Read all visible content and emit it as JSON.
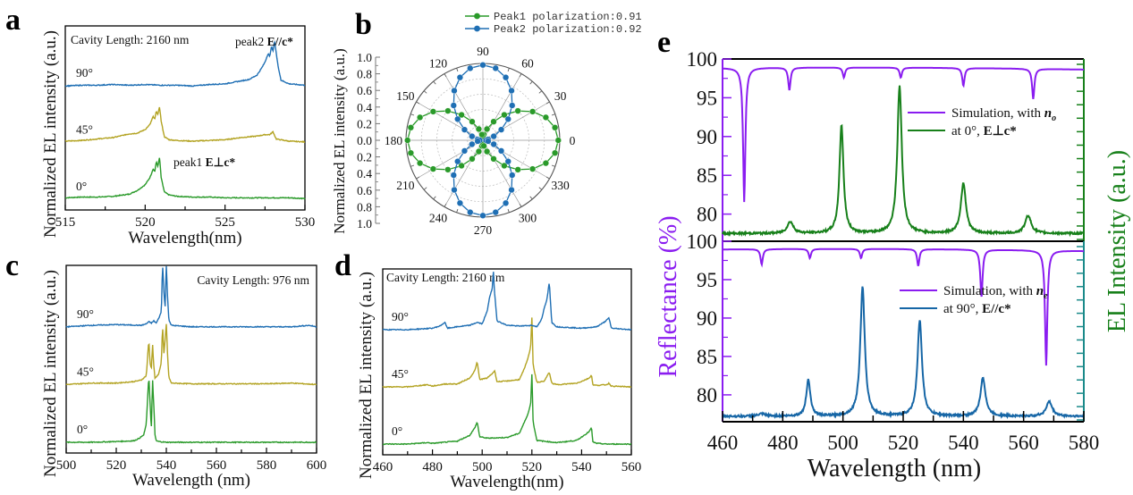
{
  "colors": {
    "green": "#2a9a2a",
    "olive": "#b3a322",
    "blue": "#1f6fb4",
    "purple": "#8a1cf0",
    "dark_green": "#17801a",
    "steel_blue": "#1666a6",
    "teal_axis": "#1a8a8a"
  },
  "chart_data": [
    {
      "id": "a",
      "type": "line",
      "panel_letter": "a",
      "title": "",
      "annotation": "Cavity Length: 2160 nm",
      "xlabel": "Wavelength(nm)",
      "ylabel": "Normalized EL intensity (a.u.)",
      "xlim": [
        515,
        530
      ],
      "xticks": [
        515,
        520,
        525,
        530
      ],
      "yticks_shown": false,
      "peak_labels": [
        {
          "text": "peak2 ",
          "bold": "E//c*",
          "x": 525.5
        },
        {
          "text": "peak1 ",
          "bold": "E⊥c*",
          "x": 521.6
        }
      ],
      "series": [
        {
          "name": "0°",
          "color_key": "green",
          "offset": 0.0,
          "x": [
            515,
            516,
            517,
            518,
            519,
            519.5,
            520,
            520.3,
            520.5,
            520.6,
            520.7,
            520.8,
            520.9,
            521.0,
            521.2,
            521.5,
            522,
            523,
            524,
            525,
            526,
            527,
            528,
            529,
            530
          ],
          "y": [
            0.02,
            0.03,
            0.03,
            0.04,
            0.07,
            0.12,
            0.2,
            0.3,
            0.42,
            0.38,
            0.52,
            0.45,
            0.58,
            0.3,
            0.1,
            0.06,
            0.04,
            0.03,
            0.03,
            0.02,
            0.02,
            0.02,
            0.02,
            0.02,
            0.01
          ]
        },
        {
          "name": "45°",
          "color_key": "olive",
          "offset": 1.0,
          "x": [
            515,
            516,
            517,
            518,
            519,
            519.5,
            520,
            520.3,
            520.5,
            520.6,
            520.7,
            520.8,
            520.9,
            521.0,
            521.2,
            521.5,
            522,
            523,
            524,
            525,
            526,
            527,
            527.5,
            527.8,
            528.0,
            528.2,
            529,
            530
          ],
          "y": [
            0.02,
            0.03,
            0.05,
            0.07,
            0.12,
            0.13,
            0.18,
            0.25,
            0.36,
            0.32,
            0.44,
            0.38,
            0.5,
            0.3,
            0.08,
            0.04,
            0.03,
            0.02,
            0.03,
            0.04,
            0.07,
            0.09,
            0.11,
            0.11,
            0.15,
            0.05,
            0.02,
            0.01
          ]
        },
        {
          "name": "90°",
          "color_key": "blue",
          "offset": 2.0,
          "x": [
            515,
            516,
            517,
            518,
            519,
            520,
            521,
            522,
            523,
            524,
            525,
            525.5,
            526,
            526.5,
            527,
            527.3,
            527.5,
            527.7,
            527.8,
            527.9,
            528.0,
            528.1,
            528.3,
            528.5,
            529,
            530
          ],
          "y": [
            0.0,
            0.01,
            0.01,
            0.02,
            0.01,
            0.02,
            0.01,
            0.01,
            0.0,
            0.02,
            0.03,
            0.05,
            0.07,
            0.09,
            0.15,
            0.25,
            0.33,
            0.45,
            0.4,
            0.55,
            0.48,
            0.62,
            0.3,
            0.08,
            0.03,
            0.01
          ]
        }
      ]
    },
    {
      "id": "b",
      "type": "polar",
      "panel_letter": "b",
      "ylabel": "Normalized EL intensity (a.u.)",
      "radial_ticks": [
        "1.0",
        "0.8",
        "0.6",
        "0.4",
        "0.2",
        "0.0",
        "0.2",
        "0.4",
        "0.6",
        "0.8",
        "1.0"
      ],
      "rlim": [
        0,
        1.0
      ],
      "angle_ticks": [
        0,
        30,
        60,
        90,
        120,
        150,
        180,
        210,
        240,
        270,
        300,
        330
      ],
      "legend": [
        {
          "label": "Peak1 polarization:0.91",
          "color_key": "green"
        },
        {
          "label": "Peak2 polarization:0.92",
          "color_key": "blue"
        }
      ],
      "legend_position": "top-right",
      "series": [
        {
          "name": "Peak1",
          "color_key": "green",
          "degree_of_polarization": 0.91,
          "max_angle_deg": 0,
          "angle_step_deg": 10
        },
        {
          "name": "Peak2",
          "color_key": "blue",
          "degree_of_polarization": 0.92,
          "max_angle_deg": 90,
          "angle_step_deg": 10
        }
      ]
    },
    {
      "id": "c",
      "type": "line",
      "panel_letter": "c",
      "annotation": "Cavity Length: 976 nm",
      "xlabel": "Wavelength (nm)",
      "ylabel": "Normalized EL intensity (a.u.)",
      "xlim": [
        500,
        600
      ],
      "xticks": [
        500,
        520,
        540,
        560,
        580,
        600
      ],
      "series": [
        {
          "name": "0°",
          "color_key": "green",
          "offset": 0.0,
          "x": [
            500,
            510,
            520,
            527,
            529,
            531,
            532,
            533,
            533.5,
            534,
            534.5,
            535,
            535.5,
            536,
            537,
            540,
            550,
            560,
            570,
            580,
            590,
            600
          ],
          "y": [
            0.0,
            0.0,
            0.01,
            0.02,
            0.05,
            0.1,
            0.25,
            0.9,
            0.55,
            0.15,
            0.85,
            0.5,
            0.08,
            0.02,
            0.01,
            0.0,
            0.0,
            0.0,
            0.0,
            0.0,
            0.0,
            0.0
          ]
        },
        {
          "name": "45°",
          "color_key": "olive",
          "offset": 1.0,
          "x": [
            500,
            510,
            520,
            527,
            530,
            532,
            533,
            533.5,
            534,
            534.5,
            535,
            535.5,
            536,
            537,
            538,
            538.5,
            539,
            539.5,
            540,
            540.5,
            541,
            542,
            550,
            560,
            570,
            580,
            590,
            600
          ],
          "y": [
            0.0,
            0.02,
            0.02,
            0.04,
            0.06,
            0.12,
            0.6,
            0.3,
            0.2,
            0.55,
            0.25,
            0.08,
            0.1,
            0.15,
            0.3,
            0.8,
            0.4,
            0.6,
            0.82,
            0.4,
            0.1,
            0.02,
            0.01,
            0.01,
            0.01,
            0.01,
            0.02,
            0.0
          ]
        },
        {
          "name": "90°",
          "color_key": "blue",
          "offset": 2.0,
          "x": [
            500,
            510,
            520,
            530,
            532,
            533,
            534,
            535,
            536,
            537,
            538,
            538.5,
            539,
            539.5,
            540,
            540.5,
            541,
            542,
            550,
            560,
            570,
            580,
            590,
            597,
            600
          ],
          "y": [
            0.0,
            0.02,
            0.03,
            0.02,
            0.04,
            0.07,
            0.05,
            0.08,
            0.05,
            0.12,
            0.2,
            0.85,
            0.5,
            0.25,
            0.82,
            0.4,
            0.1,
            0.02,
            0.0,
            0.0,
            0.0,
            0.0,
            0.0,
            0.02,
            0.0
          ]
        }
      ]
    },
    {
      "id": "d",
      "type": "line",
      "panel_letter": "d",
      "annotation": "Cavity Length: 2160 nm",
      "xlabel": "Wavelength(nm)",
      "ylabel": "Normalized EL intensity (a.u.)",
      "xlim": [
        460,
        560
      ],
      "xticks": [
        460,
        480,
        500,
        520,
        540,
        560
      ],
      "series": [
        {
          "name": "0°",
          "color_key": "green",
          "offset": 0.0,
          "x": [
            460,
            470,
            478,
            480,
            490,
            495,
            497,
            498,
            499,
            502,
            510,
            515,
            517,
            518.5,
            519.5,
            520,
            520.5,
            522,
            530,
            538,
            541,
            543,
            544,
            544.5,
            546,
            550,
            560
          ],
          "y": [
            0.0,
            0.0,
            0.02,
            0.01,
            0.04,
            0.12,
            0.22,
            0.3,
            0.1,
            0.08,
            0.09,
            0.15,
            0.3,
            0.42,
            0.55,
            0.95,
            0.3,
            0.05,
            0.02,
            0.05,
            0.12,
            0.17,
            0.22,
            0.03,
            0.01,
            0.0,
            0.0
          ]
        },
        {
          "name": "45°",
          "color_key": "olive",
          "offset": 1.0,
          "x": [
            460,
            470,
            478,
            480,
            485,
            490,
            495,
            497,
            498,
            499,
            502,
            504,
            505,
            506,
            510,
            515,
            517,
            518.5,
            519.5,
            520,
            520.5,
            522,
            525,
            527,
            528,
            530,
            538,
            541,
            543,
            544,
            544.5,
            546,
            550,
            551,
            552,
            560
          ],
          "y": [
            0.0,
            0.0,
            0.03,
            0.01,
            0.04,
            0.04,
            0.12,
            0.22,
            0.34,
            0.1,
            0.12,
            0.18,
            0.22,
            0.07,
            0.08,
            0.1,
            0.25,
            0.4,
            0.55,
            0.95,
            0.3,
            0.06,
            0.08,
            0.2,
            0.05,
            0.03,
            0.05,
            0.09,
            0.12,
            0.16,
            0.03,
            0.02,
            0.03,
            0.05,
            0.01,
            0.0
          ]
        },
        {
          "name": "90°",
          "color_key": "blue",
          "offset": 2.0,
          "x": [
            460,
            470,
            480,
            483,
            485,
            486,
            490,
            495,
            498,
            500,
            502,
            503,
            504,
            504.5,
            505,
            506,
            510,
            515,
            520,
            522,
            524,
            525,
            526,
            527,
            528,
            530,
            540,
            546,
            549,
            551,
            552,
            560
          ],
          "y": [
            0.0,
            0.0,
            0.02,
            0.05,
            0.1,
            0.02,
            0.04,
            0.06,
            0.1,
            0.08,
            0.25,
            0.45,
            0.55,
            0.8,
            0.5,
            0.12,
            0.06,
            0.05,
            0.06,
            0.04,
            0.15,
            0.3,
            0.4,
            0.65,
            0.1,
            0.04,
            0.02,
            0.04,
            0.1,
            0.16,
            0.02,
            0.0
          ]
        }
      ]
    },
    {
      "id": "e",
      "type": "line",
      "panel_letter": "e",
      "xlabel": "Wavelength (nm)",
      "ylabel_left": "Reflectance (%)",
      "ylabel_right": "EL Intensity (a.u.)",
      "xlim": [
        460,
        580
      ],
      "xticks": [
        460,
        480,
        500,
        520,
        540,
        560,
        580
      ],
      "subplots": [
        {
          "position": "top",
          "ylim_left": [
            76.5,
            100
          ],
          "yticks_left": [
            80,
            85,
            90,
            95,
            100
          ],
          "legend": [
            {
              "label": "Simulation, with ",
              "italic_bold": "n",
              "sub": "o",
              "color_key": "purple"
            },
            {
              "label": "at 0°, ",
              "bold": "E⊥c*",
              "color_key": "dark_green"
            }
          ],
          "legend_position": "center-right",
          "series": [
            {
              "name": "Simulation, with n_o",
              "color_key": "purple",
              "axis": "left",
              "baseline": 98.9,
              "dips": [
                [
                  467.2,
                  81.6
                ],
                [
                  482.2,
                  96.0
                ],
                [
                  500.3,
                  97.6
                ],
                [
                  519.2,
                  97.6
                ],
                [
                  540.0,
                  96.6
                ],
                [
                  563.2,
                  95.0
                ]
              ]
            },
            {
              "name": "at 0°, E⊥c*",
              "color_key": "dark_green",
              "axis": "right",
              "baseline": 77.5,
              "peaks": [
                [
                  482.5,
                  79.0,
                  1.2
                ],
                [
                  499.5,
                  91.5,
                  0.8
                ],
                [
                  518.8,
                  96.5,
                  0.9
                ],
                [
                  540.0,
                  84.0,
                  1.0
                ],
                [
                  561.5,
                  79.8,
                  1.2
                ]
              ]
            }
          ]
        },
        {
          "position": "bottom",
          "ylim_left": [
            76.5,
            100
          ],
          "yticks_left": [
            80,
            85,
            90,
            95,
            100
          ],
          "legend": [
            {
              "label": "Simulation, with ",
              "italic_bold": "n",
              "sub": "e",
              "color_key": "purple"
            },
            {
              "label": "at 90°, ",
              "bold": "E//c*",
              "color_key": "steel_blue"
            }
          ],
          "legend_position": "center-right",
          "series": [
            {
              "name": "Simulation, with n_e",
              "color_key": "purple",
              "axis": "left",
              "baseline": 99.0,
              "dips": [
                [
                  473.0,
                  97.0
                ],
                [
                  489.0,
                  97.8
                ],
                [
                  506.0,
                  97.8
                ],
                [
                  525.0,
                  96.8
                ],
                [
                  546.0,
                  92.8
                ],
                [
                  567.5,
                  84.0
                ]
              ]
            },
            {
              "name": "at 90°, E//c*",
              "color_key": "steel_blue",
              "axis": "right",
              "baseline": 77.2,
              "peaks": [
                [
                  473.0,
                  77.5,
                  1.5
                ],
                [
                  488.5,
                  82.0,
                  0.8
                ],
                [
                  506.5,
                  94.0,
                  0.9
                ],
                [
                  525.5,
                  89.7,
                  0.9
                ],
                [
                  546.5,
                  82.2,
                  1.0
                ],
                [
                  568.5,
                  79.1,
                  1.2
                ]
              ]
            }
          ]
        }
      ]
    }
  ]
}
